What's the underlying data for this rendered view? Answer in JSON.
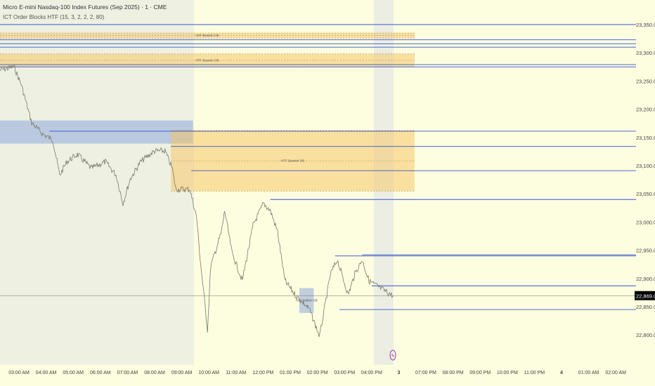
{
  "header": {
    "symbol_title": "Micro E-mini Nasdaq-100 Index Futures (Sep 2025) · 1 · CME",
    "indicator_title": "ICT Order Blocks HTF (15, 3, 2, 2, 2, 80)"
  },
  "colors": {
    "background": "#fdfde0",
    "premarket_shade": "#eef1e2",
    "session_break_shade": "#eceee4",
    "price_line": "#7a7a6a",
    "level_line": "#3355cc",
    "bearish_ob": "#f5c45e",
    "bullish_ob": "#8fa8dc",
    "last_price_bg": "#000000"
  },
  "chart_data": {
    "type": "line",
    "title": "",
    "xlabel": "",
    "ylabel": "",
    "ylim": [
      22780,
      23370
    ],
    "y_ticks": [
      "23,350.00",
      "23,300.00",
      "23,250.00",
      "23,200.00",
      "23,150.00",
      "23,100.00",
      "23,050.00",
      "23,000.00",
      "22,950.00",
      "22,900.00",
      "22,850.00",
      "22,800.00"
    ],
    "x_ticks": [
      "03:00 AM",
      "04:00 AM",
      "05:00 AM",
      "06:00 AM",
      "07:00 AM",
      "08:00 AM",
      "09:00 AM",
      "10:00 AM",
      "11:00 AM",
      "12:00 PM",
      "01:00 PM",
      "02:00 PM",
      "03:00 PM",
      "04:00 PM",
      "3",
      "07:00 PM",
      "08:00 PM",
      "09:00 PM",
      "10:00 PM",
      "11:00 PM",
      "4",
      "01:00 AM",
      "02:00 AM"
    ],
    "last_price": "22,869.00",
    "series": [
      {
        "points": [
          [
            "02:18",
            23269
          ],
          [
            "02:49",
            23275
          ],
          [
            "03:05",
            23244
          ],
          [
            "03:28",
            23176
          ],
          [
            "03:51",
            23157
          ],
          [
            "04:15",
            23145
          ],
          [
            "04:30",
            23083
          ],
          [
            "04:46",
            23107
          ],
          [
            "05:09",
            23120
          ],
          [
            "05:40",
            23095
          ],
          [
            "06:11",
            23107
          ],
          [
            "06:35",
            23083
          ],
          [
            "06:50",
            23033
          ],
          [
            "07:06",
            23076
          ],
          [
            "07:29",
            23107
          ],
          [
            "08:00",
            23126
          ],
          [
            "08:23",
            23126
          ],
          [
            "08:39",
            23095
          ],
          [
            "08:47",
            23058
          ],
          [
            "09:18",
            23058
          ],
          [
            "09:33",
            23008
          ],
          [
            "09:41",
            22933
          ],
          [
            "09:57",
            22809
          ],
          [
            "10:04",
            22921
          ],
          [
            "10:28",
            22983
          ],
          [
            "10:35",
            23020
          ],
          [
            "10:51",
            22946
          ],
          [
            "11:14",
            22896
          ],
          [
            "11:38",
            22995
          ],
          [
            "12:01",
            23033
          ],
          [
            "12:16",
            23020
          ],
          [
            "12:32",
            22983
          ],
          [
            "12:48",
            22896
          ],
          [
            "13:11",
            22871
          ],
          [
            "13:42",
            22846
          ],
          [
            "14:05",
            22797
          ],
          [
            "14:29",
            22908
          ],
          [
            "14:44",
            22933
          ],
          [
            "15:08",
            22871
          ],
          [
            "15:23",
            22908
          ],
          [
            "15:39",
            22933
          ],
          [
            "15:54",
            22896
          ],
          [
            "16:17",
            22884
          ],
          [
            "16:48",
            22869
          ]
        ]
      }
    ],
    "zones": [
      {
        "kind": "bearish",
        "label": "HTF Bearish OB",
        "top": 23335,
        "bottom": 23326,
        "from": "02:18",
        "to": "17:35"
      },
      {
        "kind": "bearish",
        "label": "HTF Bearish OB",
        "top": 23298,
        "bottom": 23275,
        "from": "02:18",
        "to": "17:35"
      },
      {
        "kind": "bullish",
        "label": "",
        "top": 23180,
        "bottom": 23139,
        "from": "02:18",
        "to": "09:25"
      },
      {
        "kind": "bearish",
        "label": "HTF Bearish OB",
        "top": 23162,
        "bottom": 23055,
        "from": "08:36",
        "to": "17:35"
      },
      {
        "kind": "bullish",
        "label": "HTF Bullish OB",
        "top": 22883,
        "bottom": 22839,
        "from": "13:20",
        "to": "13:52"
      }
    ],
    "levels": [
      {
        "price": 23350,
        "from": "02:18"
      },
      {
        "price": 23323,
        "from": "02:18"
      },
      {
        "price": 23316,
        "from": "02:18"
      },
      {
        "price": 23310,
        "from": "02:18"
      },
      {
        "price": 23279,
        "from": "02:18"
      },
      {
        "price": 23275,
        "from": "02:18"
      },
      {
        "price": 23161,
        "from": "04:07"
      },
      {
        "price": 23134,
        "from": "08:36"
      },
      {
        "price": 23091,
        "from": "09:21"
      },
      {
        "price": 23040,
        "from": "12:16"
      },
      {
        "price": 22942,
        "from": "15:39"
      },
      {
        "price": 22940,
        "from": "14:39"
      },
      {
        "price": 22887,
        "from": "16:00"
      },
      {
        "price": 22845,
        "from": "14:49"
      }
    ],
    "grid": false,
    "legend": "top-left"
  }
}
